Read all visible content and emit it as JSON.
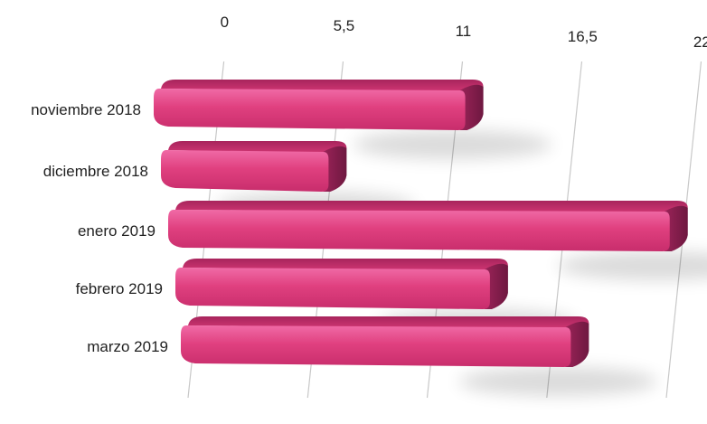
{
  "chart_data": {
    "type": "bar",
    "orientation": "horizontal",
    "style": "3d",
    "categories": [
      "noviembre 2018",
      "diciembre 2018",
      "enero 2019",
      "febrero 2019",
      "marzo 2019"
    ],
    "values": [
      12,
      6,
      22,
      14,
      18
    ],
    "x_ticks": [
      "0",
      "5,5",
      "11",
      "16,5",
      "22"
    ],
    "xlim": [
      0,
      22
    ],
    "grid": true,
    "legend": "none",
    "title": "",
    "xlabel": "",
    "ylabel": "",
    "colors": {
      "bar_front": "#e0407f",
      "bar_top": "#c02a68",
      "bar_side": "#8a1f4f",
      "grid": "#c8c8c8"
    }
  }
}
